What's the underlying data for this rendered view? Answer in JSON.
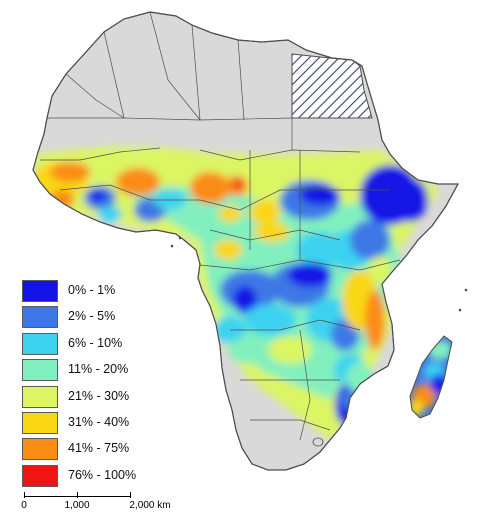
{
  "map": {
    "colors": {
      "land": "#d9d9d9",
      "border": "#4d4d4d",
      "hatch": "#35406d",
      "water": "#ffffff"
    },
    "legend": [
      {
        "label": "0% - 1%",
        "color": "#1414e6"
      },
      {
        "label": "2% - 5%",
        "color": "#3c78e6"
      },
      {
        "label": "6% - 10%",
        "color": "#3cd2f0"
      },
      {
        "label": "11% - 20%",
        "color": "#82f0be"
      },
      {
        "label": "21% - 30%",
        "color": "#dcf564"
      },
      {
        "label": "31% - 40%",
        "color": "#fad714"
      },
      {
        "label": "41% - 75%",
        "color": "#fa8c14"
      },
      {
        "label": "76% - 100%",
        "color": "#f01414"
      }
    ],
    "scale": {
      "labels": [
        "0",
        "1,000",
        "2,000 km"
      ]
    }
  }
}
